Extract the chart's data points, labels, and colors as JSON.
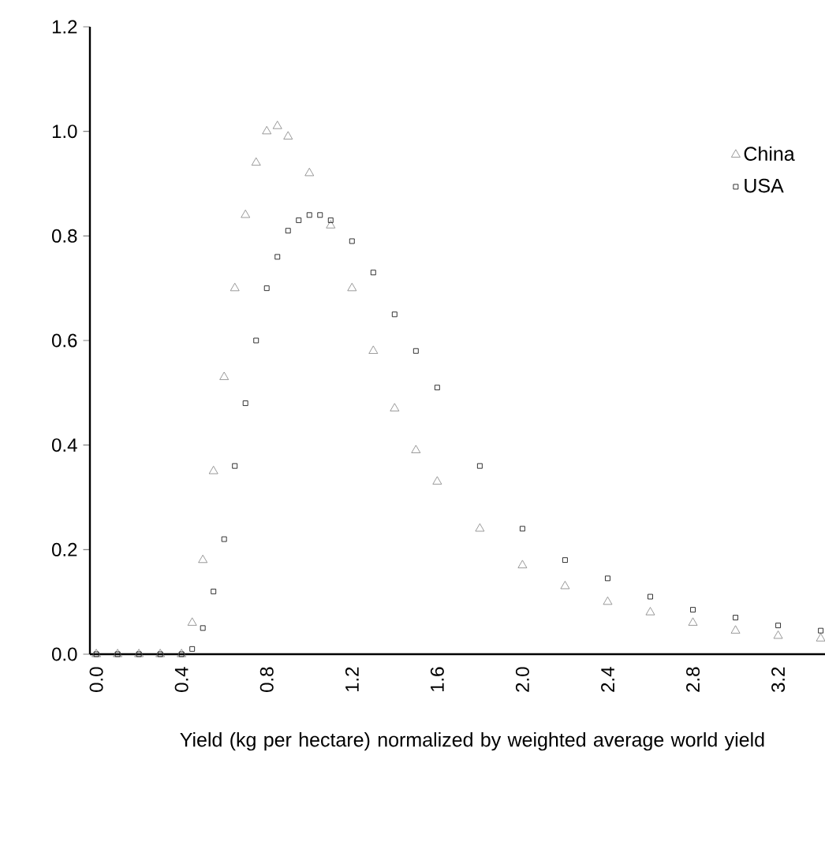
{
  "chart_data": {
    "type": "scatter",
    "xlabel": "Yield (kg per hectare) normalized by weighted average world yield",
    "xlim": [
      -0.03,
      3.42
    ],
    "xticks": [
      {
        "value": 0,
        "label": "0.0"
      },
      0.4,
      0.8,
      1.2,
      1.6,
      {
        "value": 2,
        "label": "2.0"
      },
      2.4,
      2.8,
      3.2
    ],
    "ylim": [
      0,
      1.2
    ],
    "yticks": [
      {
        "value": 0,
        "label": "0.0"
      },
      0.2,
      0.4,
      0.6,
      0.8,
      {
        "value": 1,
        "label": "1.0"
      },
      1.2
    ],
    "grid": false,
    "legend": "top right",
    "series": [
      {
        "name": "China",
        "color": "#808080",
        "marker": "triangle",
        "x": [
          0,
          0.1,
          0.2,
          0.3,
          0.4,
          0.45,
          0.5,
          0.55,
          0.6,
          0.65,
          0.7,
          0.75,
          0.8,
          0.85,
          0.9,
          1.0,
          1.1,
          1.2,
          1.3,
          1.4,
          1.5,
          1.6,
          1.8,
          2.0,
          2.2,
          2.4,
          2.6,
          2.8,
          3.0,
          3.2,
          3.4
        ],
        "values": [
          0,
          0,
          0,
          0,
          0,
          0.06,
          0.18,
          0.35,
          0.53,
          0.7,
          0.84,
          0.94,
          1.0,
          1.01,
          0.99,
          0.92,
          0.82,
          0.7,
          0.58,
          0.47,
          0.39,
          0.33,
          0.24,
          0.17,
          0.13,
          0.1,
          0.08,
          0.06,
          0.045,
          0.035,
          0.03
        ]
      },
      {
        "name": "USA",
        "color": "#000000",
        "marker": "square",
        "x": [
          0,
          0.1,
          0.2,
          0.3,
          0.4,
          0.45,
          0.5,
          0.55,
          0.6,
          0.65,
          0.7,
          0.75,
          0.8,
          0.85,
          0.9,
          0.95,
          1.0,
          1.05,
          1.1,
          1.2,
          1.3,
          1.4,
          1.5,
          1.6,
          1.8,
          2.0,
          2.2,
          2.4,
          2.6,
          2.8,
          3.0,
          3.2,
          3.4
        ],
        "values": [
          0,
          0,
          0,
          0,
          0,
          0.01,
          0.05,
          0.12,
          0.22,
          0.36,
          0.48,
          0.6,
          0.7,
          0.76,
          0.81,
          0.83,
          0.84,
          0.84,
          0.83,
          0.79,
          0.73,
          0.65,
          0.58,
          0.51,
          0.36,
          0.24,
          0.18,
          0.145,
          0.11,
          0.085,
          0.07,
          0.055,
          0.045
        ]
      }
    ]
  }
}
